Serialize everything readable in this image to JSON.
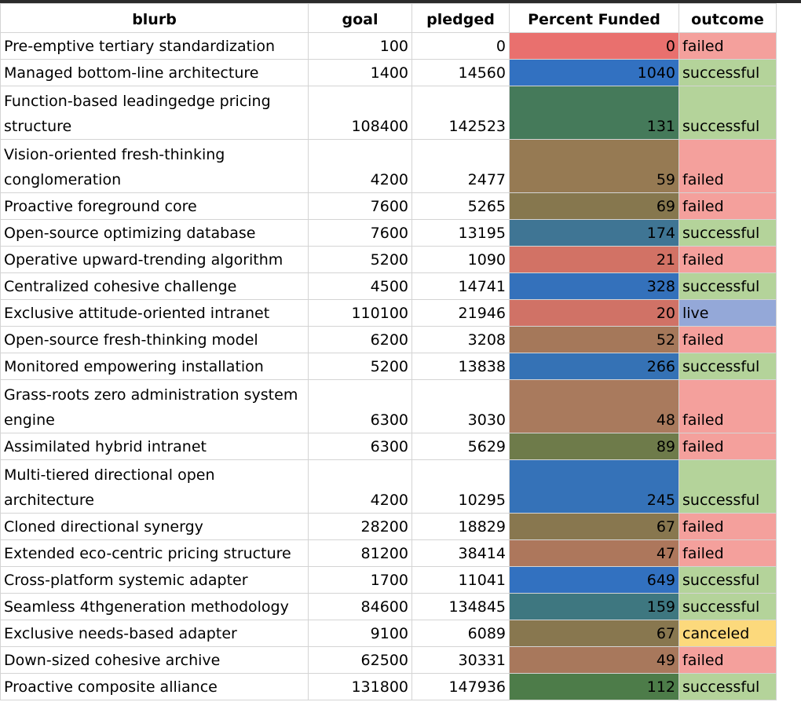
{
  "columns": {
    "blurb": "blurb",
    "goal": "goal",
    "pledged": "pledged",
    "percent": "Percent Funded",
    "outcome": "outcome"
  },
  "outcome_colors": {
    "failed": "#f4a09c",
    "successful": "#b4d39a",
    "live": "#94a8d8",
    "canceled": "#fcd97c"
  },
  "rows": [
    {
      "blurb": "Pre-emptive tertiary standardization",
      "goal": "100",
      "pledged": "0",
      "percent": "0",
      "outcome": "failed",
      "pct_color": "#e9706e"
    },
    {
      "blurb": "Managed bottom-line architecture",
      "goal": "1400",
      "pledged": "14560",
      "percent": "1040",
      "outcome": "successful",
      "pct_color": "#3271c1"
    },
    {
      "blurb": "Function-based leadingedge pricing structure",
      "goal": "108400",
      "pledged": "142523",
      "percent": "131",
      "outcome": "successful",
      "pct_color": "#457a5a"
    },
    {
      "blurb": "Vision-oriented fresh-thinking conglomeration",
      "goal": "4200",
      "pledged": "2477",
      "percent": "59",
      "outcome": "failed",
      "pct_color": "#967a53"
    },
    {
      "blurb": "Proactive foreground core",
      "goal": "7600",
      "pledged": "5265",
      "percent": "69",
      "outcome": "failed",
      "pct_color": "#86774e"
    },
    {
      "blurb": "Open-source optimizing database",
      "goal": "7600",
      "pledged": "13195",
      "percent": "174",
      "outcome": "successful",
      "pct_color": "#3f7594"
    },
    {
      "blurb": "Operative upward-trending algorithm",
      "goal": "5200",
      "pledged": "1090",
      "percent": "21",
      "outcome": "failed",
      "pct_color": "#d27265"
    },
    {
      "blurb": "Centralized cohesive challenge",
      "goal": "4500",
      "pledged": "14741",
      "percent": "328",
      "outcome": "successful",
      "pct_color": "#3471bb"
    },
    {
      "blurb": "Exclusive attitude-oriented intranet",
      "goal": "110100",
      "pledged": "21946",
      "percent": "20",
      "outcome": "live",
      "pct_color": "#d07266"
    },
    {
      "blurb": "Open-source fresh-thinking model",
      "goal": "6200",
      "pledged": "3208",
      "percent": "52",
      "outcome": "failed",
      "pct_color": "#a5785a"
    },
    {
      "blurb": "Monitored empowering installation",
      "goal": "5200",
      "pledged": "13838",
      "percent": "266",
      "outcome": "successful",
      "pct_color": "#3572b5"
    },
    {
      "blurb": "Grass-roots zero administration system engine",
      "goal": "6300",
      "pledged": "3030",
      "percent": "48",
      "outcome": "failed",
      "pct_color": "#a97a5d"
    },
    {
      "blurb": "Assimilated hybrid intranet",
      "goal": "6300",
      "pledged": "5629",
      "percent": "89",
      "outcome": "failed",
      "pct_color": "#6e7b4a"
    },
    {
      "blurb": "Multi-tiered directional open architecture",
      "goal": "4200",
      "pledged": "10295",
      "percent": "245",
      "outcome": "successful",
      "pct_color": "#3572b8"
    },
    {
      "blurb": "Cloned directional synergy",
      "goal": "28200",
      "pledged": "18829",
      "percent": "67",
      "outcome": "failed",
      "pct_color": "#88774f"
    },
    {
      "blurb": "Extended eco-centric pricing structure",
      "goal": "81200",
      "pledged": "38414",
      "percent": "47",
      "outcome": "failed",
      "pct_color": "#ad775c"
    },
    {
      "blurb": "Cross-platform systemic adapter",
      "goal": "1700",
      "pledged": "11041",
      "percent": "649",
      "outcome": "successful",
      "pct_color": "#3271c0"
    },
    {
      "blurb": "Seamless 4thgeneration methodology",
      "goal": "84600",
      "pledged": "134845",
      "percent": "159",
      "outcome": "successful",
      "pct_color": "#3e7780"
    },
    {
      "blurb": "Exclusive needs-based adapter",
      "goal": "9100",
      "pledged": "6089",
      "percent": "67",
      "outcome": "canceled",
      "pct_color": "#88774f"
    },
    {
      "blurb": "Down-sized cohesive archive",
      "goal": "62500",
      "pledged": "30331",
      "percent": "49",
      "outcome": "failed",
      "pct_color": "#a8785c"
    },
    {
      "blurb": "Proactive composite alliance",
      "goal": "131800",
      "pledged": "147936",
      "percent": "112",
      "outcome": "successful",
      "pct_color": "#4d7c49"
    }
  ]
}
